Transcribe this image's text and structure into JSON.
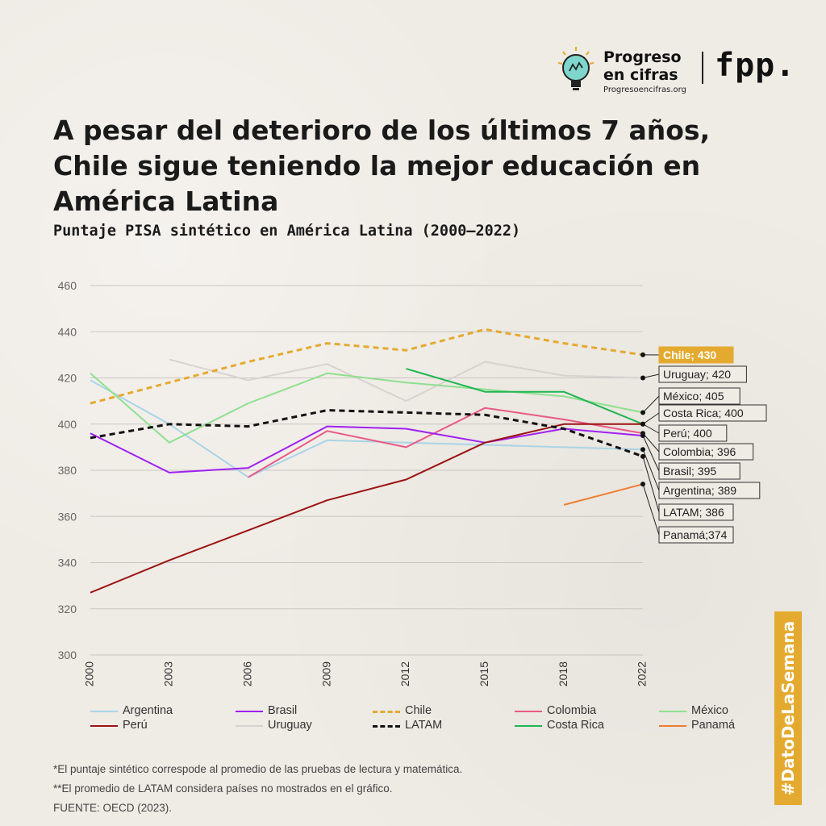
{
  "brand": {
    "name": "Progreso\nen cifras",
    "url": "Progresoencifras.org",
    "partner": "fpp."
  },
  "title": "A pesar del deterioro de los últimos 7 años, Chile sigue teniendo la mejor educación en América Latina",
  "subtitle": "Puntaje PISA sintético en América Latina (2000–2022)",
  "chart_data": {
    "type": "line",
    "title": "A pesar del deterioro de los últimos 7 años, Chile sigue teniendo la mejor educación en América Latina",
    "subtitle": "Puntaje PISA sintético en América Latina (2000–2022)",
    "x": [
      2000,
      2003,
      2006,
      2009,
      2012,
      2015,
      2018,
      2022
    ],
    "ylim": [
      300,
      460
    ],
    "yticks": [
      300,
      320,
      340,
      360,
      380,
      400,
      420,
      440,
      460
    ],
    "grid": "horizontal",
    "legend_position": "bottom",
    "series": [
      {
        "name": "Argentina",
        "color": "#a9d4e6",
        "dash": "solid",
        "values": [
          419,
          400,
          377,
          393,
          392,
          391,
          390,
          389
        ]
      },
      {
        "name": "Brasil",
        "color": "#a020f0",
        "dash": "solid",
        "values": [
          396,
          379,
          381,
          399,
          398,
          392,
          398,
          395
        ]
      },
      {
        "name": "Chile",
        "color": "#e4aa2f",
        "dash": "dashed",
        "values": [
          409,
          418,
          427,
          435,
          432,
          441,
          435,
          430
        ]
      },
      {
        "name": "Colombia",
        "color": "#e85a86",
        "dash": "solid",
        "values": [
          null,
          null,
          377,
          397,
          390,
          407,
          402,
          396
        ]
      },
      {
        "name": "México",
        "color": "#8fe08f",
        "dash": "solid",
        "values": [
          422,
          392,
          409,
          422,
          418,
          415,
          412,
          405
        ]
      },
      {
        "name": "Perú",
        "color": "#9b1414",
        "dash": "solid",
        "values": [
          327,
          341,
          354,
          367,
          376,
          392,
          400,
          400
        ]
      },
      {
        "name": "Uruguay",
        "color": "#d6d3d0",
        "dash": "solid",
        "values": [
          null,
          428,
          419,
          426,
          410,
          427,
          421,
          420
        ]
      },
      {
        "name": "LATAM",
        "color": "#111111",
        "dash": "dashed",
        "values": [
          394,
          400,
          399,
          406,
          405,
          404,
          398,
          386
        ]
      },
      {
        "name": "Costa Rica",
        "color": "#1fb552",
        "dash": "solid",
        "values": [
          null,
          null,
          null,
          null,
          424,
          414,
          414,
          400
        ]
      },
      {
        "name": "Panamá",
        "color": "#ef7d32",
        "dash": "solid",
        "values": [
          null,
          null,
          null,
          null,
          null,
          null,
          365,
          374
        ]
      }
    ],
    "end_labels": [
      {
        "text": "Chile; 430",
        "series": "Chile",
        "highlight": true
      },
      {
        "text": "Uruguay; 420",
        "series": "Uruguay"
      },
      {
        "text": "México; 405",
        "series": "México"
      },
      {
        "text": "Costa Rica; 400",
        "series": "Costa Rica"
      },
      {
        "text": "Perú; 400",
        "series": "Perú"
      },
      {
        "text": "Colombia; 396",
        "series": "Colombia"
      },
      {
        "text": "Brasil; 395",
        "series": "Brasil"
      },
      {
        "text": "Argentina; 389",
        "series": "Argentina"
      },
      {
        "text": "LATAM; 386",
        "series": "LATAM"
      },
      {
        "text": "Panamá;374",
        "series": "Panamá"
      }
    ]
  },
  "notes": [
    "*El puntaje sintético correspode al promedio de las pruebas de lectura y matemática.",
    "**El promedio de LATAM considera países no mostrados en el gráfico.",
    "FUENTE: OECD (2023)."
  ],
  "hashtag": "#DatoDeLaSemana",
  "colors": {
    "background": "#efebe5",
    "accent": "#e4aa2f",
    "grid": "#cccccc"
  }
}
